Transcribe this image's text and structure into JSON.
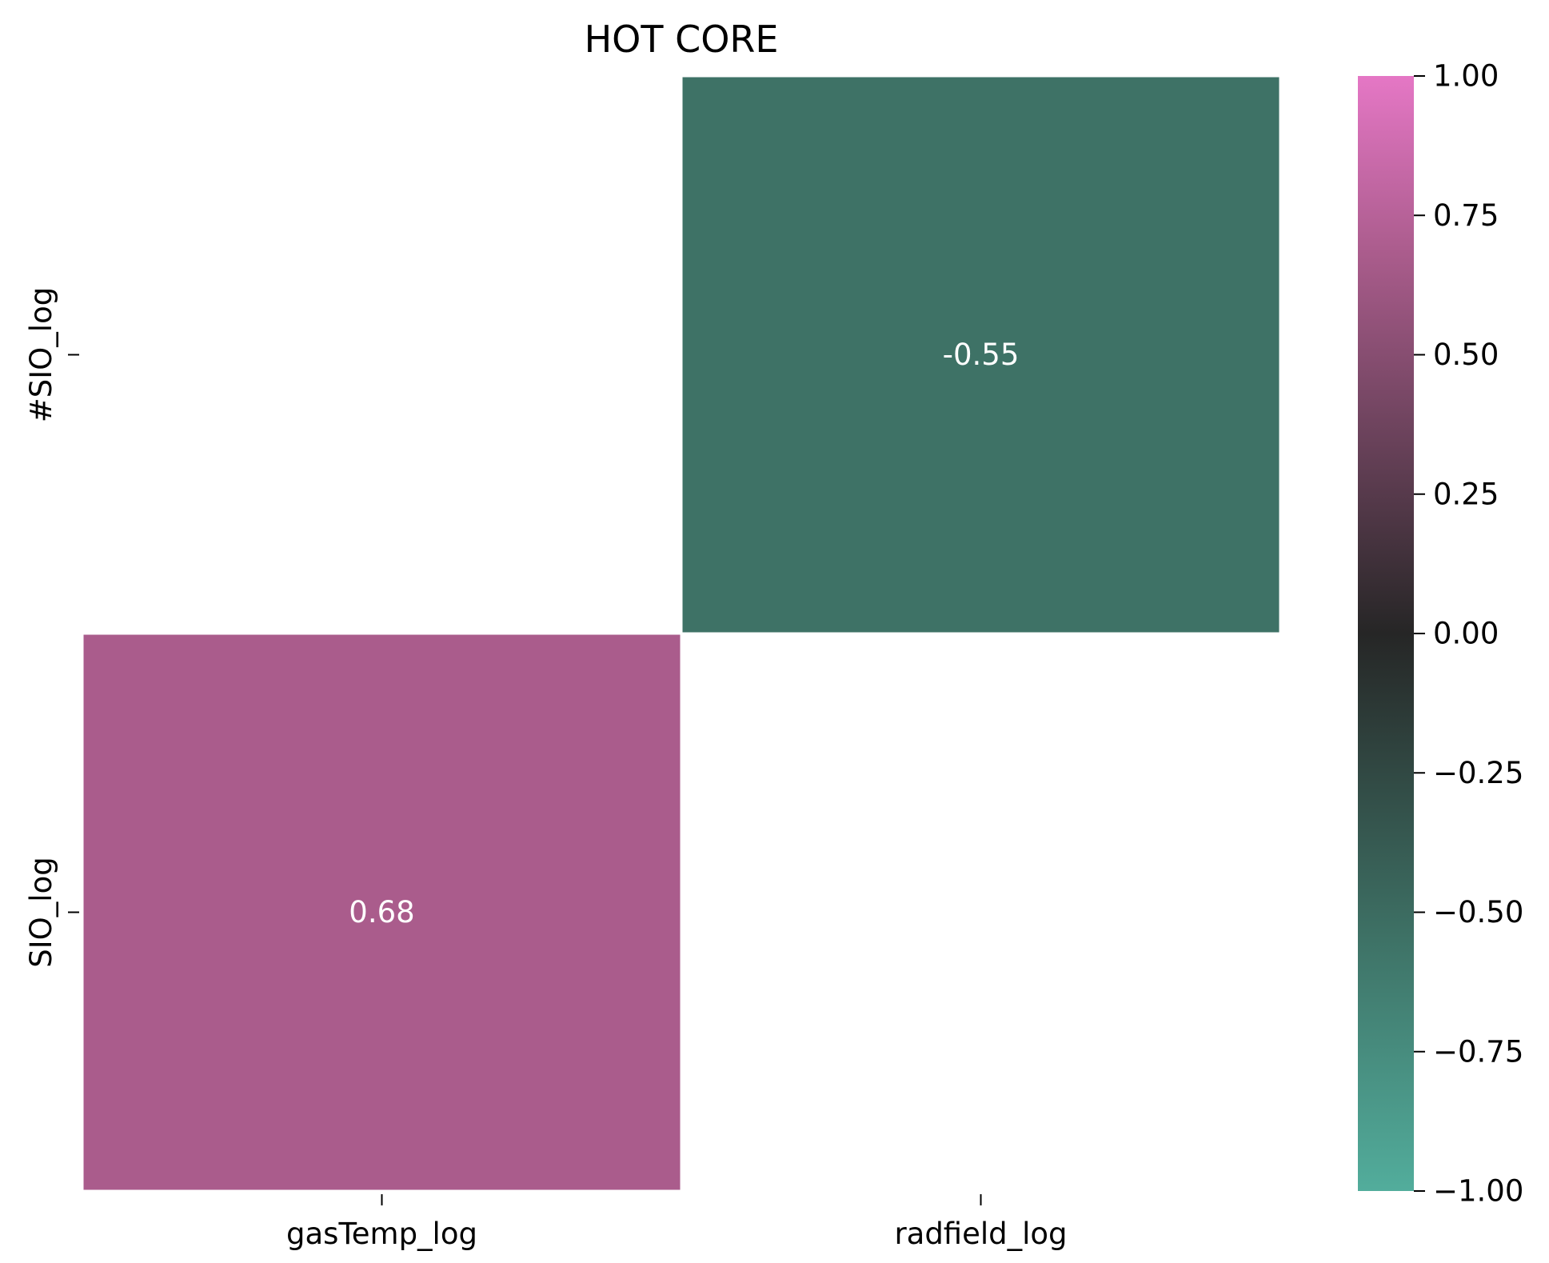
{
  "chart_data": {
    "type": "heatmap",
    "title": "HOT CORE",
    "xlabel": "",
    "ylabel": "",
    "x_categories": [
      "gasTemp_log",
      "radfield_log"
    ],
    "y_categories": [
      "#SIO_log",
      "SIO_log"
    ],
    "cells": [
      {
        "row": 0,
        "col": 1,
        "value": -0.55,
        "label": "-0.55"
      },
      {
        "row": 1,
        "col": 0,
        "value": 0.68,
        "label": "0.68"
      }
    ],
    "masked_cells": [
      {
        "row": 0,
        "col": 0
      },
      {
        "row": 1,
        "col": 1
      }
    ],
    "colorbar": {
      "vmin": -1.0,
      "vmax": 1.0,
      "ticks": [
        1.0,
        0.75,
        0.5,
        0.25,
        0.0,
        -0.25,
        -0.5,
        -0.75,
        -1.0
      ],
      "tick_labels": [
        "1.00",
        "0.75",
        "0.50",
        "0.25",
        "0.00",
        "−0.25",
        "−0.50",
        "−0.75",
        "−1.00"
      ],
      "color_stops": [
        {
          "value": -1.0,
          "color": "#52ad9c"
        },
        {
          "value": -0.55,
          "color": "#3e7266"
        },
        {
          "value": 0.0,
          "color": "#262626"
        },
        {
          "value": 0.68,
          "color": "#aa5c8c"
        },
        {
          "value": 1.0,
          "color": "#e577c5"
        }
      ]
    },
    "grid": false,
    "legend": "colorbar-right"
  }
}
